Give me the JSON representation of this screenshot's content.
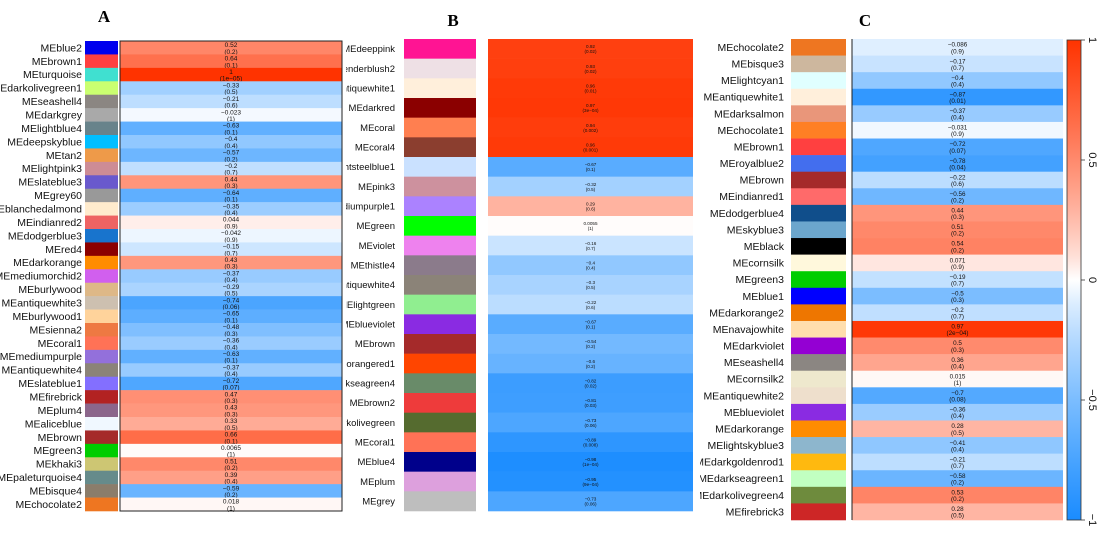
{
  "chart_data": [
    {
      "type": "heatmap",
      "panel": "A",
      "rows": [
        {
          "module": "MEblue2",
          "color": "#0000ee",
          "r": "0.52",
          "p": "(0.2)"
        },
        {
          "module": "MEbrown1",
          "color": "#ff4040",
          "r": "0.64",
          "p": "(0.1)"
        },
        {
          "module": "MEturquoise",
          "color": "#40e0d0",
          "r": "1",
          "p": "(1e−05)"
        },
        {
          "module": "MEdarkolivegreen1",
          "color": "#caff70",
          "r": "−0.33",
          "p": "(0.5)"
        },
        {
          "module": "MEseashell4",
          "color": "#8b8682",
          "r": "−0.21",
          "p": "(0.6)"
        },
        {
          "module": "MEdarkgrey",
          "color": "#a9a9a9",
          "r": "−0.023",
          "p": "(1)"
        },
        {
          "module": "MElightblue4",
          "color": "#68838b",
          "r": "−0.63",
          "p": "(0.1)"
        },
        {
          "module": "MEdeepskyblue",
          "color": "#00bfff",
          "r": "−0.4",
          "p": "(0.4)"
        },
        {
          "module": "MEtan2",
          "color": "#ee9a49",
          "r": "−0.57",
          "p": "(0.2)"
        },
        {
          "module": "MElightpink3",
          "color": "#cd8c95",
          "r": "−0.2",
          "p": "(0.7)"
        },
        {
          "module": "MEslateblue3",
          "color": "#6959cd",
          "r": "0.44",
          "p": "(0.3)"
        },
        {
          "module": "MEgrey60",
          "color": "#999999",
          "r": "−0.64",
          "p": "(0.1)"
        },
        {
          "module": "MEblanchedalmond",
          "color": "#ffebcd",
          "r": "−0.35",
          "p": "(0.4)"
        },
        {
          "module": "MEindianred2",
          "color": "#ee6363",
          "r": "0.044",
          "p": "(0.9)"
        },
        {
          "module": "MEdodgerblue3",
          "color": "#1874cd",
          "r": "−0.042",
          "p": "(0.9)"
        },
        {
          "module": "MEred4",
          "color": "#8b0000",
          "r": "−0.15",
          "p": "(0.7)"
        },
        {
          "module": "MEdarkorange",
          "color": "#ff8c00",
          "r": "0.43",
          "p": "(0.3)"
        },
        {
          "module": "MEmediumorchid2",
          "color": "#d15fee",
          "r": "−0.37",
          "p": "(0.4)"
        },
        {
          "module": "MEburlywood",
          "color": "#deb887",
          "r": "−0.29",
          "p": "(0.5)"
        },
        {
          "module": "MEantiquewhite3",
          "color": "#cdc0b0",
          "r": "−0.74",
          "p": "(0.06)"
        },
        {
          "module": "MEburlywood1",
          "color": "#ffd39b",
          "r": "−0.65",
          "p": "(0.1)"
        },
        {
          "module": "MEsienna2",
          "color": "#ee7942",
          "r": "−0.48",
          "p": "(0.3)"
        },
        {
          "module": "MEcoral1",
          "color": "#ff7256",
          "r": "−0.36",
          "p": "(0.4)"
        },
        {
          "module": "MEmediumpurple",
          "color": "#9370db",
          "r": "−0.63",
          "p": "(0.1)"
        },
        {
          "module": "MEantiquewhite4",
          "color": "#8b8378",
          "r": "−0.37",
          "p": "(0.4)"
        },
        {
          "module": "MEslateblue1",
          "color": "#836fff",
          "r": "−0.72",
          "p": "(0.07)"
        },
        {
          "module": "MEfirebrick",
          "color": "#b22222",
          "r": "0.47",
          "p": "(0.3)"
        },
        {
          "module": "MEplum4",
          "color": "#8b668b",
          "r": "0.43",
          "p": "(0.3)"
        },
        {
          "module": "MEaliceblue",
          "color": "#f0f8ff",
          "r": "0.33",
          "p": "(0.5)"
        },
        {
          "module": "MEbrown",
          "color": "#a52a2a",
          "r": "0.66",
          "p": "(0.1)"
        },
        {
          "module": "MEgreen3",
          "color": "#00cd00",
          "r": "0.0065",
          "p": "(1)"
        },
        {
          "module": "MEkhaki3",
          "color": "#cdc673",
          "r": "0.51",
          "p": "(0.2)"
        },
        {
          "module": "MEpaleturquoise4",
          "color": "#668b8b",
          "r": "0.39",
          "p": "(0.4)"
        },
        {
          "module": "MEbisque4",
          "color": "#8b7d6b",
          "r": "−0.59",
          "p": "(0.2)"
        },
        {
          "module": "MEchocolate2",
          "color": "#ee7621",
          "r": "0.018",
          "p": "(1)"
        }
      ]
    },
    {
      "type": "heatmap",
      "panel": "B",
      "rows": [
        {
          "module": "MEdeeppink",
          "color": "#ff1493",
          "r": "0.92",
          "p": "(0.02)"
        },
        {
          "module": "MElavenderblush2",
          "color": "#eee0e5",
          "r": "0.93",
          "p": "(0.02)"
        },
        {
          "module": "MEantiquewhite1",
          "color": "#ffefdb",
          "r": "0.96",
          "p": "(0.01)"
        },
        {
          "module": "MEdarkred",
          "color": "#8b0000",
          "r": "0.97",
          "p": "(3e−04)"
        },
        {
          "module": "MEcoral",
          "color": "#ff7f50",
          "r": "0.94",
          "p": "(0.002)"
        },
        {
          "module": "MEcoral4",
          "color": "#8b3e2f",
          "r": "0.96",
          "p": "(0.001)"
        },
        {
          "module": "MElightsteelblue1",
          "color": "#cae1ff",
          "r": "−0.67",
          "p": "(0.1)"
        },
        {
          "module": "MEpink3",
          "color": "#cd919e",
          "r": "−0.32",
          "p": "(0.5)"
        },
        {
          "module": "MEmediumpurple1",
          "color": "#ab82ff",
          "r": "0.29",
          "p": "(0.6)"
        },
        {
          "module": "MEgreen",
          "color": "#00ff00",
          "r": "0.0055",
          "p": "(1)"
        },
        {
          "module": "MEviolet",
          "color": "#ee82ee",
          "r": "−0.16",
          "p": "(0.7)"
        },
        {
          "module": "MEthistle4",
          "color": "#8b7b8b",
          "r": "−0.4",
          "p": "(0.4)"
        },
        {
          "module": "MEantiquewhite4",
          "color": "#8b8378",
          "r": "−0.3",
          "p": "(0.5)"
        },
        {
          "module": "MElightgreen",
          "color": "#90ee90",
          "r": "−0.22",
          "p": "(0.6)"
        },
        {
          "module": "MEblueviolet",
          "color": "#8a2be2",
          "r": "−0.67",
          "p": "(0.1)"
        },
        {
          "module": "MEbrown",
          "color": "#a52a2a",
          "r": "−0.54",
          "p": "(0.2)"
        },
        {
          "module": "MEorangered1",
          "color": "#ff4500",
          "r": "−0.6",
          "p": "(0.2)"
        },
        {
          "module": "MEdarkseagreen4",
          "color": "#698b69",
          "r": "−0.82",
          "p": "(0.02)"
        },
        {
          "module": "MEbrown2",
          "color": "#ee3b3b",
          "r": "−0.81",
          "p": "(0.03)"
        },
        {
          "module": "MEdarkolivegreen",
          "color": "#556b2f",
          "r": "−0.73",
          "p": "(0.06)"
        },
        {
          "module": "MEcoral1",
          "color": "#ff7256",
          "r": "−0.89",
          "p": "(0.008)"
        },
        {
          "module": "MEblue4",
          "color": "#00008b",
          "r": "−0.98",
          "p": "(1e−04)"
        },
        {
          "module": "MEplum",
          "color": "#dda0dd",
          "r": "−0.95",
          "p": "(9e−04)"
        },
        {
          "module": "MEgrey",
          "color": "#bebebe",
          "r": "−0.73",
          "p": "(0.06)"
        }
      ]
    },
    {
      "type": "heatmap",
      "panel": "C",
      "rows": [
        {
          "module": "MEchocolate2",
          "color": "#ee7621",
          "r": "−0.086",
          "p": "(0.9)"
        },
        {
          "module": "MEbisque3",
          "color": "#cdb79e",
          "r": "−0.17",
          "p": "(0.7)"
        },
        {
          "module": "MElightcyan1",
          "color": "#e0ffff",
          "r": "−0.4",
          "p": "(0.4)"
        },
        {
          "module": "MEantiquewhite1",
          "color": "#ffefdb",
          "r": "−0.87",
          "p": "(0.01)"
        },
        {
          "module": "MEdarksalmon",
          "color": "#e9967a",
          "r": "−0.37",
          "p": "(0.4)"
        },
        {
          "module": "MEchocolate1",
          "color": "#ff7f24",
          "r": "−0.031",
          "p": "(0.9)"
        },
        {
          "module": "MEbrown1",
          "color": "#ff4040",
          "r": "−0.72",
          "p": "(0.07)"
        },
        {
          "module": "MEroyalblue2",
          "color": "#436eee",
          "r": "−0.78",
          "p": "(0.04)"
        },
        {
          "module": "MEbrown",
          "color": "#a52a2a",
          "r": "−0.22",
          "p": "(0.6)"
        },
        {
          "module": "MEindianred1",
          "color": "#ff6a6a",
          "r": "−0.56",
          "p": "(0.2)"
        },
        {
          "module": "MEdodgerblue4",
          "color": "#104e8b",
          "r": "0.44",
          "p": "(0.3)"
        },
        {
          "module": "MEskyblue3",
          "color": "#6ca6cd",
          "r": "0.51",
          "p": "(0.2)"
        },
        {
          "module": "MEblack",
          "color": "#000000",
          "r": "0.54",
          "p": "(0.2)"
        },
        {
          "module": "MEcornsilk",
          "color": "#fff8dc",
          "r": "0.071",
          "p": "(0.9)"
        },
        {
          "module": "MEgreen3",
          "color": "#00cd00",
          "r": "−0.19",
          "p": "(0.7)"
        },
        {
          "module": "MEblue1",
          "color": "#0000ff",
          "r": "−0.5",
          "p": "(0.3)"
        },
        {
          "module": "MEdarkorange2",
          "color": "#ee7600",
          "r": "−0.2",
          "p": "(0.7)"
        },
        {
          "module": "MEnavajowhite",
          "color": "#ffdead",
          "r": "0.97",
          "p": "(2e−04)"
        },
        {
          "module": "MEdarkviolet",
          "color": "#9400d3",
          "r": "0.5",
          "p": "(0.3)"
        },
        {
          "module": "MEseashell4",
          "color": "#8b8682",
          "r": "0.36",
          "p": "(0.4)"
        },
        {
          "module": "MEcornsilk2",
          "color": "#eee8cd",
          "r": "0.015",
          "p": "(1)"
        },
        {
          "module": "MEantiquewhite2",
          "color": "#eedfcc",
          "r": "−0.7",
          "p": "(0.08)"
        },
        {
          "module": "MEblueviolet",
          "color": "#8a2be2",
          "r": "−0.36",
          "p": "(0.4)"
        },
        {
          "module": "MEdarkorange",
          "color": "#ff8c00",
          "r": "0.28",
          "p": "(0.5)"
        },
        {
          "module": "MElightskyblue3",
          "color": "#8db6cd",
          "r": "−0.41",
          "p": "(0.4)"
        },
        {
          "module": "MEdarkgoldenrod1",
          "color": "#ffb90f",
          "r": "−0.21",
          "p": "(0.7)"
        },
        {
          "module": "MEdarkseagreen1",
          "color": "#c1ffc1",
          "r": "−0.58",
          "p": "(0.2)"
        },
        {
          "module": "MEdarkolivegreen4",
          "color": "#6e8b3d",
          "r": "0.53",
          "p": "(0.2)"
        },
        {
          "module": "MEfirebrick3",
          "color": "#cd2626",
          "r": "0.28",
          "p": "(0.5)"
        }
      ]
    }
  ],
  "colorbar": {
    "ticks": [
      "1",
      "0.5",
      "0",
      "−0.5",
      "−1"
    ],
    "low_color": "#1a8cff",
    "mid_color": "#ffffff",
    "high_color": "#ff3300"
  }
}
